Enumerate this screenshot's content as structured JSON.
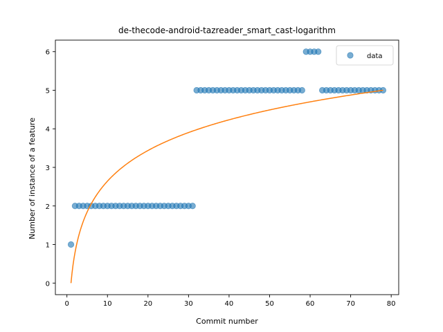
{
  "chart_data": {
    "type": "scatter",
    "title": "de-thecode-android-tazreader_smart_cast-logarithm",
    "xlabel": "Commit number",
    "ylabel": "Number of instance of a feature",
    "xlim": [
      -2.85,
      81.85
    ],
    "ylim": [
      -0.3,
      6.3
    ],
    "xticks": [
      0,
      10,
      20,
      30,
      40,
      50,
      60,
      70,
      80
    ],
    "yticks": [
      0,
      1,
      2,
      3,
      4,
      5,
      6
    ],
    "grid": false,
    "legend": {
      "placement": "top-right",
      "entries": [
        "data"
      ]
    },
    "series": [
      {
        "name": "data",
        "kind": "scatter",
        "color": "#1f77b4",
        "x": [
          1,
          2,
          3,
          4,
          5,
          6,
          7,
          8,
          9,
          10,
          11,
          12,
          13,
          14,
          15,
          16,
          17,
          18,
          19,
          20,
          21,
          22,
          23,
          24,
          25,
          26,
          27,
          28,
          29,
          30,
          31,
          32,
          33,
          34,
          35,
          36,
          37,
          38,
          39,
          40,
          41,
          42,
          43,
          44,
          45,
          46,
          47,
          48,
          49,
          50,
          51,
          52,
          53,
          54,
          55,
          56,
          57,
          58,
          59,
          60,
          61,
          62,
          63,
          64,
          65,
          66,
          67,
          68,
          69,
          70,
          71,
          72,
          73,
          74,
          75,
          76,
          77,
          78
        ],
        "y": [
          1,
          2,
          2,
          2,
          2,
          2,
          2,
          2,
          2,
          2,
          2,
          2,
          2,
          2,
          2,
          2,
          2,
          2,
          2,
          2,
          2,
          2,
          2,
          2,
          2,
          2,
          2,
          2,
          2,
          2,
          2,
          5,
          5,
          5,
          5,
          5,
          5,
          5,
          5,
          5,
          5,
          5,
          5,
          5,
          5,
          5,
          5,
          5,
          5,
          5,
          5,
          5,
          5,
          5,
          5,
          5,
          5,
          5,
          6,
          6,
          6,
          6,
          5,
          5,
          5,
          5,
          5,
          5,
          5,
          5,
          5,
          5,
          5,
          5,
          5,
          5,
          5,
          5
        ]
      },
      {
        "kind": "line",
        "color": "#ff7f0e",
        "fit": "logarithmic",
        "x_start": 1,
        "x_end": 78,
        "y_start": 0,
        "y_end": 5
      }
    ]
  }
}
